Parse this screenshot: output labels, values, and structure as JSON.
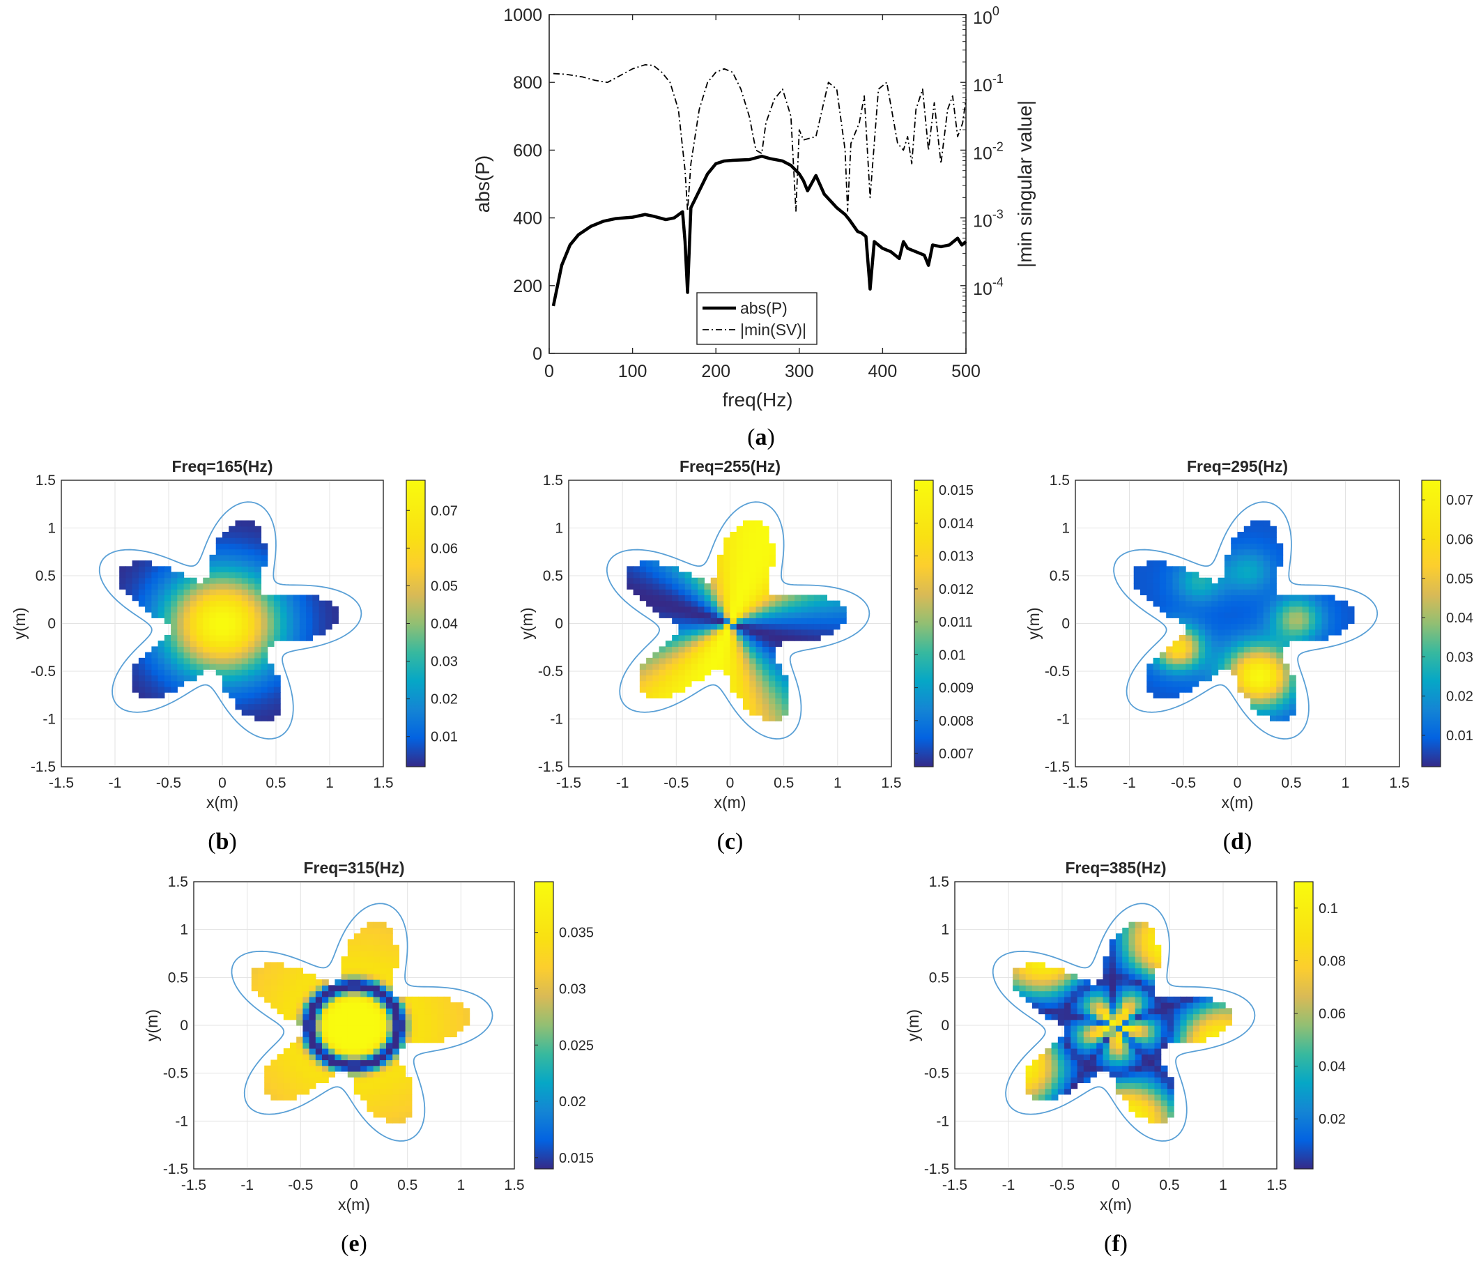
{
  "chart_data": [
    {
      "id": "a",
      "type": "line",
      "subfigure_label": "a",
      "xlabel": "freq(Hz)",
      "ylabel": "abs(P)",
      "ylabel_right": "|min singular value|",
      "xlim": [
        0,
        500
      ],
      "ylim": [
        0,
        1000
      ],
      "ylim_right_log10": [
        -5,
        0
      ],
      "x_ticks": [
        "0",
        "100",
        "200",
        "300",
        "400",
        "500"
      ],
      "y_ticks": [
        "0",
        "200",
        "400",
        "600",
        "800",
        "1000"
      ],
      "y_ticks_right": [
        {
          "base": "10",
          "exp": "0"
        },
        {
          "base": "10",
          "exp": "-1"
        },
        {
          "base": "10",
          "exp": "-2"
        },
        {
          "base": "10",
          "exp": "-3"
        },
        {
          "base": "10",
          "exp": "-4"
        }
      ],
      "legend": [
        "abs(P)",
        "|min(SV)|"
      ],
      "legend_position": "bottom-center",
      "series": [
        {
          "name": "abs(P)",
          "axis": "left",
          "style": "solid",
          "x": [
            5,
            15,
            25,
            35,
            50,
            65,
            80,
            100,
            115,
            125,
            140,
            150,
            160,
            163,
            166,
            170,
            180,
            190,
            200,
            210,
            220,
            240,
            255,
            265,
            280,
            290,
            300,
            305,
            310,
            320,
            330,
            345,
            355,
            360,
            370,
            375,
            380,
            385,
            390,
            400,
            410,
            420,
            425,
            430,
            440,
            450,
            455,
            460,
            470,
            480,
            490,
            495,
            500
          ],
          "y": [
            140,
            260,
            320,
            350,
            375,
            390,
            398,
            402,
            410,
            405,
            395,
            400,
            418,
            330,
            180,
            430,
            480,
            530,
            560,
            568,
            570,
            572,
            582,
            575,
            568,
            555,
            530,
            510,
            480,
            525,
            470,
            430,
            410,
            395,
            360,
            355,
            345,
            190,
            330,
            310,
            300,
            280,
            330,
            310,
            300,
            290,
            260,
            320,
            315,
            320,
            340,
            320,
            330
          ]
        },
        {
          "name": "|min(SV)|",
          "axis": "right",
          "style": "dash-dot",
          "x": [
            5,
            20,
            40,
            55,
            70,
            85,
            100,
            115,
            125,
            135,
            145,
            155,
            163,
            166,
            170,
            180,
            190,
            200,
            210,
            220,
            230,
            240,
            248,
            255,
            260,
            270,
            280,
            290,
            296,
            300,
            305,
            320,
            335,
            345,
            355,
            358,
            362,
            372,
            378,
            385,
            395,
            405,
            418,
            425,
            430,
            435,
            440,
            448,
            455,
            462,
            470,
            478,
            484,
            490,
            496,
            500
          ],
          "y_log10": [
            -0.87,
            -0.88,
            -0.92,
            -0.97,
            -1.0,
            -0.9,
            -0.8,
            -0.74,
            -0.75,
            -0.85,
            -1.0,
            -1.4,
            -2.3,
            -2.9,
            -2.2,
            -1.4,
            -1.0,
            -0.85,
            -0.8,
            -0.85,
            -1.1,
            -1.5,
            -2.0,
            -2.05,
            -1.6,
            -1.25,
            -1.1,
            -1.5,
            -2.9,
            -1.7,
            -1.85,
            -1.8,
            -1.0,
            -1.1,
            -2.0,
            -2.9,
            -1.9,
            -1.6,
            -1.2,
            -2.7,
            -1.1,
            -1.0,
            -1.9,
            -2.0,
            -1.8,
            -2.2,
            -1.4,
            -1.1,
            -2.0,
            -1.3,
            -2.2,
            -1.4,
            -1.2,
            -1.8,
            -1.6,
            -1.25
          ]
        }
      ]
    },
    {
      "id": "b",
      "type": "heatmap",
      "subfigure_label": "b",
      "title": "Freq=165(Hz)",
      "xlabel": "x(m)",
      "ylabel": "y(m)",
      "xlim": [
        -1.5,
        1.5
      ],
      "ylim": [
        -1.5,
        1.5
      ],
      "x_ticks": [
        "-1.5",
        "-1",
        "-0.5",
        "0",
        "0.5",
        "1",
        "1.5"
      ],
      "y_ticks": [
        "1.5",
        "1",
        "0.5",
        "0",
        "-0.5",
        "-1",
        "-1.5"
      ],
      "colorbar_range": [
        0.002,
        0.078
      ],
      "colorbar_ticks": [
        "0.07",
        "0.06",
        "0.05",
        "0.04",
        "0.03",
        "0.02",
        "0.01"
      ],
      "field_description": "single central maximum"
    },
    {
      "id": "c",
      "type": "heatmap",
      "subfigure_label": "c",
      "title": "Freq=255(Hz)",
      "xlabel": "x(m)",
      "ylabel": "y(m)",
      "xlim": [
        -1.5,
        1.5
      ],
      "ylim": [
        -1.5,
        1.5
      ],
      "x_ticks": [
        "-1.5",
        "-1",
        "-0.5",
        "0",
        "0.5",
        "1",
        "1.5"
      ],
      "y_ticks": [
        "1.5",
        "1",
        "0.5",
        "0",
        "-0.5",
        "-1",
        "-1.5"
      ],
      "colorbar_range": [
        0.0066,
        0.0153
      ],
      "colorbar_ticks": [
        "0.015",
        "0.014",
        "0.013",
        "0.012",
        "0.011",
        "0.01",
        "0.009",
        "0.008",
        "0.007"
      ],
      "field_description": "angular mode"
    },
    {
      "id": "d",
      "type": "heatmap",
      "subfigure_label": "d",
      "title": "Freq=295(Hz)",
      "xlabel": "x(m)",
      "ylabel": "y(m)",
      "xlim": [
        -1.5,
        1.5
      ],
      "ylim": [
        -1.5,
        1.5
      ],
      "x_ticks": [
        "-1.5",
        "-1",
        "-0.5",
        "0",
        "0.5",
        "1",
        "1.5"
      ],
      "y_ticks": [
        "1.5",
        "1",
        "0.5",
        "0",
        "-0.5",
        "-1",
        "-1.5"
      ],
      "colorbar_range": [
        0.002,
        0.075
      ],
      "colorbar_ticks": [
        "0.07",
        "0.06",
        "0.05",
        "0.04",
        "0.03",
        "0.02",
        "0.01"
      ],
      "field_description": "lobes with nodal lines"
    },
    {
      "id": "e",
      "type": "heatmap",
      "subfigure_label": "e",
      "title": "Freq=315(Hz)",
      "xlabel": "x(m)",
      "ylabel": "y(m)",
      "xlim": [
        -1.5,
        1.5
      ],
      "ylim": [
        -1.5,
        1.5
      ],
      "x_ticks": [
        "-1.5",
        "-1",
        "-0.5",
        "0",
        "0.5",
        "1",
        "1.5"
      ],
      "y_ticks": [
        "1.5",
        "1",
        "0.5",
        "0",
        "-0.5",
        "-1",
        "-1.5"
      ],
      "colorbar_range": [
        0.014,
        0.0395
      ],
      "colorbar_ticks": [
        "0.035",
        "0.03",
        "0.025",
        "0.02",
        "0.015"
      ],
      "field_description": "central pentagon with ring node"
    },
    {
      "id": "f",
      "type": "heatmap",
      "subfigure_label": "f",
      "title": "Freq=385(Hz)",
      "xlabel": "x(m)",
      "ylabel": "y(m)",
      "xlim": [
        -1.5,
        1.5
      ],
      "ylim": [
        -1.5,
        1.5
      ],
      "x_ticks": [
        "-1.5",
        "-1",
        "-0.5",
        "0",
        "0.5",
        "1",
        "1.5"
      ],
      "y_ticks": [
        "1.5",
        "1",
        "0.5",
        "0",
        "-0.5",
        "-1",
        "-1.5"
      ],
      "colorbar_range": [
        0.001,
        0.11
      ],
      "colorbar_ticks": [
        "0.1",
        "0.08",
        "0.06",
        "0.04",
        "0.02"
      ],
      "field_description": "higher-order mode"
    }
  ]
}
